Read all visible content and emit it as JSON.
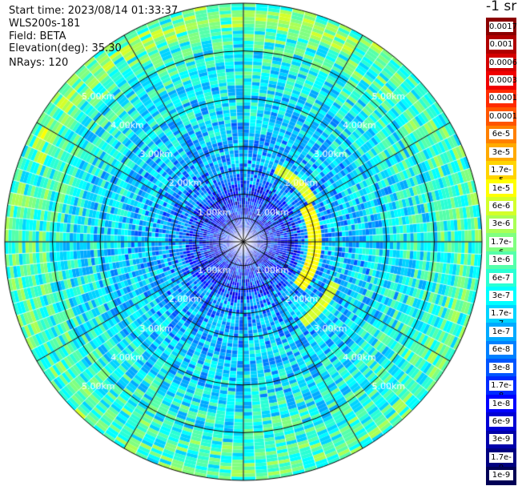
{
  "info": {
    "start_time": "Start time: 2023/08/14 01:33:37",
    "instrument": "WLS200s-181",
    "field": "Field: BETA",
    "elevation": "Elevation(deg): 35.30",
    "nrays": "NRays: 120"
  },
  "colorbar": {
    "units": "-1 sr",
    "levels": [
      {
        "label": "0.0017",
        "color": "#8b0000"
      },
      {
        "label": "0.001",
        "color": "#b00000"
      },
      {
        "label": "0.0006",
        "color": "#d40000"
      },
      {
        "label": "0.0003",
        "color": "#f00000"
      },
      {
        "label": "0.00017",
        "color": "#ff2a00"
      },
      {
        "label": "0.0001",
        "color": "#ff5500"
      },
      {
        "label": "6e-5",
        "color": "#ff8000"
      },
      {
        "label": "3e-5",
        "color": "#ffaa00"
      },
      {
        "label": "1.7e-5",
        "color": "#ffd400"
      },
      {
        "label": "1e-5",
        "color": "#ffff00"
      },
      {
        "label": "6e-6",
        "color": "#d4ff2a"
      },
      {
        "label": "3e-6",
        "color": "#aaff55"
      },
      {
        "label": "1.7e-6",
        "color": "#80ff80"
      },
      {
        "label": "1e-6",
        "color": "#55ffaa"
      },
      {
        "label": "6e-7",
        "color": "#2affd4"
      },
      {
        "label": "3e-7",
        "color": "#00ffff"
      },
      {
        "label": "1.7e-7",
        "color": "#00d4ff"
      },
      {
        "label": "1e-7",
        "color": "#00aaff"
      },
      {
        "label": "6e-8",
        "color": "#0080ff"
      },
      {
        "label": "3e-8",
        "color": "#0055ff"
      },
      {
        "label": "1.7e-8",
        "color": "#002aff"
      },
      {
        "label": "1e-8",
        "color": "#0000ff"
      },
      {
        "label": "6e-9",
        "color": "#0000d4"
      },
      {
        "label": "3e-9",
        "color": "#0000aa"
      },
      {
        "label": "1.7e-9",
        "color": "#000080"
      },
      {
        "label": "1e-9",
        "color": "#000055"
      }
    ]
  },
  "chart_data": {
    "type": "heatmap",
    "projection": "polar (PPI scan)",
    "field": "BETA",
    "units": "-1 sr",
    "rays": 120,
    "range_rings_km": [
      1,
      2,
      3,
      4,
      5
    ],
    "range_ring_labels": [
      "1.00km",
      "2.00km",
      "3.00km",
      "4.00km",
      "5.00km"
    ],
    "max_range_km": 5.0,
    "azimuth_lines_count": 12,
    "color_scale": "log",
    "color_range": [
      1e-09,
      0.0017
    ],
    "description_values": {
      "inner_background_min": 1.7e-08,
      "inner_background_max": 1e-07,
      "outer_background_min": 1e-07,
      "outer_background_max": 1e-06,
      "highlight_arc": [
        {
          "range_km": 1.5,
          "azimuth_deg_from": 60,
          "azimuth_deg_to": 130,
          "value": 1e-05
        },
        {
          "range_km": 2.1,
          "azimuth_deg_from": 115,
          "azimuth_deg_to": 145,
          "value": 6e-06
        },
        {
          "range_km": 1.7,
          "azimuth_deg_from": 25,
          "azimuth_deg_to": 60,
          "value": 6e-06
        }
      ],
      "outer_arc": {
        "range_km": 4.7,
        "azimuth_deg_from": 290,
        "azimuth_deg_to": 30,
        "value": 3e-06
      }
    }
  }
}
